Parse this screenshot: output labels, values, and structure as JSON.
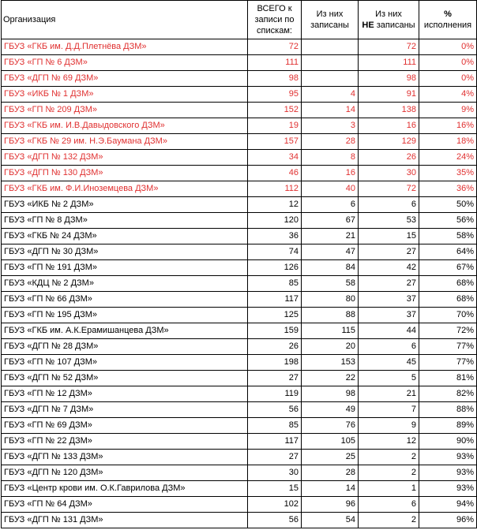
{
  "header": {
    "org": "Организация",
    "total_line1": "ВСЕГО к",
    "total_line2": "записи по",
    "total_line3": "спискам:",
    "signed_line1": "Из них",
    "signed_line2": "записаны",
    "not_signed_line1": "Из них",
    "not_signed_bold": "НЕ",
    "not_signed_line2": " записаны",
    "percent_line1": "%",
    "percent_line2": "исполнения"
  },
  "colors": {
    "highlight": "#e03030",
    "text": "#000000"
  },
  "rows": [
    {
      "org": "ГБУЗ «ГКБ им. Д.Д.Плетнёва ДЗМ»",
      "total": "72",
      "signed": "",
      "not_signed": "72",
      "percent": "0%",
      "red": true
    },
    {
      "org": "ГБУЗ «ГП № 6 ДЗМ»",
      "total": "111",
      "signed": "",
      "not_signed": "111",
      "percent": "0%",
      "red": true
    },
    {
      "org": "ГБУЗ «ДГП № 69 ДЗМ»",
      "total": "98",
      "signed": "",
      "not_signed": "98",
      "percent": "0%",
      "red": true
    },
    {
      "org": "ГБУЗ «ИКБ № 1 ДЗМ»",
      "total": "95",
      "signed": "4",
      "not_signed": "91",
      "percent": "4%",
      "red": true
    },
    {
      "org": "ГБУЗ «ГП № 209 ДЗМ»",
      "total": "152",
      "signed": "14",
      "not_signed": "138",
      "percent": "9%",
      "red": true
    },
    {
      "org": "ГБУЗ «ГКБ им. И.В.Давыдовского ДЗМ»",
      "total": "19",
      "signed": "3",
      "not_signed": "16",
      "percent": "16%",
      "red": true
    },
    {
      "org": "ГБУЗ «ГКБ № 29 им. Н.Э.Баумана ДЗМ»",
      "total": "157",
      "signed": "28",
      "not_signed": "129",
      "percent": "18%",
      "red": true
    },
    {
      "org": "ГБУЗ «ДГП № 132 ДЗМ»",
      "total": "34",
      "signed": "8",
      "not_signed": "26",
      "percent": "24%",
      "red": true
    },
    {
      "org": "ГБУЗ «ДГП № 130 ДЗМ»",
      "total": "46",
      "signed": "16",
      "not_signed": "30",
      "percent": "35%",
      "red": true
    },
    {
      "org": "ГБУЗ «ГКБ им. Ф.И.Иноземцева ДЗМ»",
      "total": "112",
      "signed": "40",
      "not_signed": "72",
      "percent": "36%",
      "red": true
    },
    {
      "org": "ГБУЗ «ИКБ № 2 ДЗМ»",
      "total": "12",
      "signed": "6",
      "not_signed": "6",
      "percent": "50%",
      "red": false
    },
    {
      "org": "ГБУЗ «ГП № 8 ДЗМ»",
      "total": "120",
      "signed": "67",
      "not_signed": "53",
      "percent": "56%",
      "red": false
    },
    {
      "org": "ГБУЗ «ГКБ № 24 ДЗМ»",
      "total": "36",
      "signed": "21",
      "not_signed": "15",
      "percent": "58%",
      "red": false
    },
    {
      "org": "ГБУЗ «ДГП № 30 ДЗМ»",
      "total": "74",
      "signed": "47",
      "not_signed": "27",
      "percent": "64%",
      "red": false
    },
    {
      "org": "ГБУЗ «ГП № 191 ДЗМ»",
      "total": "126",
      "signed": "84",
      "not_signed": "42",
      "percent": "67%",
      "red": false
    },
    {
      "org": "ГБУЗ «КДЦ № 2 ДЗМ»",
      "total": "85",
      "signed": "58",
      "not_signed": "27",
      "percent": "68%",
      "red": false
    },
    {
      "org": "ГБУЗ «ГП № 66 ДЗМ»",
      "total": "117",
      "signed": "80",
      "not_signed": "37",
      "percent": "68%",
      "red": false
    },
    {
      "org": "ГБУЗ «ГП № 195 ДЗМ»",
      "total": "125",
      "signed": "88",
      "not_signed": "37",
      "percent": "70%",
      "red": false
    },
    {
      "org": "ГБУЗ «ГКБ им. А.К.Ерамишанцева ДЗМ»",
      "total": "159",
      "signed": "115",
      "not_signed": "44",
      "percent": "72%",
      "red": false
    },
    {
      "org": "ГБУЗ «ДГП № 28 ДЗМ»",
      "total": "26",
      "signed": "20",
      "not_signed": "6",
      "percent": "77%",
      "red": false
    },
    {
      "org": "ГБУЗ «ГП № 107 ДЗМ»",
      "total": "198",
      "signed": "153",
      "not_signed": "45",
      "percent": "77%",
      "red": false
    },
    {
      "org": "ГБУЗ «ДГП № 52 ДЗМ»",
      "total": "27",
      "signed": "22",
      "not_signed": "5",
      "percent": "81%",
      "red": false
    },
    {
      "org": "ГБУЗ «ГП № 12 ДЗМ»",
      "total": "119",
      "signed": "98",
      "not_signed": "21",
      "percent": "82%",
      "red": false
    },
    {
      "org": "ГБУЗ «ДГП № 7 ДЗМ»",
      "total": "56",
      "signed": "49",
      "not_signed": "7",
      "percent": "88%",
      "red": false
    },
    {
      "org": "ГБУЗ «ГП № 69 ДЗМ»",
      "total": "85",
      "signed": "76",
      "not_signed": "9",
      "percent": "89%",
      "red": false
    },
    {
      "org": "ГБУЗ «ГП № 22 ДЗМ»",
      "total": "117",
      "signed": "105",
      "not_signed": "12",
      "percent": "90%",
      "red": false
    },
    {
      "org": "ГБУЗ «ДГП № 133 ДЗМ»",
      "total": "27",
      "signed": "25",
      "not_signed": "2",
      "percent": "93%",
      "red": false
    },
    {
      "org": "ГБУЗ «ДГП № 120 ДЗМ»",
      "total": "30",
      "signed": "28",
      "not_signed": "2",
      "percent": "93%",
      "red": false
    },
    {
      "org": "ГБУЗ «Центр крови им. О.К.Гаврилова ДЗМ»",
      "total": "15",
      "signed": "14",
      "not_signed": "1",
      "percent": "93%",
      "red": false
    },
    {
      "org": "ГБУЗ «ГП № 64 ДЗМ»",
      "total": "102",
      "signed": "96",
      "not_signed": "6",
      "percent": "94%",
      "red": false
    },
    {
      "org": "ГБУЗ «ДГП № 131 ДЗМ»",
      "total": "56",
      "signed": "54",
      "not_signed": "2",
      "percent": "96%",
      "red": false
    }
  ]
}
